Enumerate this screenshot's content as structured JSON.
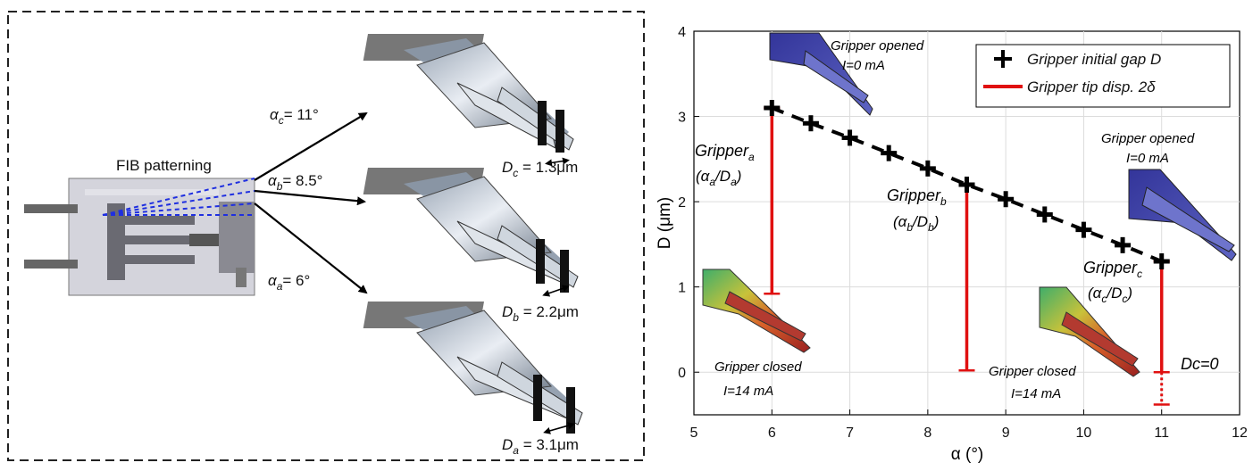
{
  "left_panel": {
    "fib_label": "FIB patterning",
    "angles": [
      {
        "symbol": "α",
        "sub": "c",
        "value": "= 11°"
      },
      {
        "symbol": "α",
        "sub": "b",
        "value": "= 8.5°"
      },
      {
        "symbol": "α",
        "sub": "a",
        "value": "= 6°"
      }
    ],
    "gaps": [
      {
        "symbol": "D",
        "sub": "c",
        "value": " = 1.3μm"
      },
      {
        "symbol": "D",
        "sub": "b",
        "value": " = 2.2μm"
      },
      {
        "symbol": "D",
        "sub": "a",
        "value": " = 3.1μm"
      }
    ]
  },
  "chart_data": {
    "type": "scatter",
    "xlabel": "α (°)",
    "ylabel": "D (μm)",
    "xlim": [
      5,
      12
    ],
    "ylim": [
      -0.5,
      4
    ],
    "xticks": [
      5,
      6,
      7,
      8,
      9,
      10,
      11,
      12
    ],
    "yticks": [
      0,
      1,
      2,
      3,
      4
    ],
    "grid": true,
    "legend_position": "top-right",
    "series": [
      {
        "name": "Gripper initial gap D",
        "color": "#000000",
        "x": [
          6,
          6.5,
          7,
          7.5,
          8,
          8.5,
          9,
          9.5,
          10,
          10.5,
          11
        ],
        "y": [
          3.1,
          2.92,
          2.75,
          2.57,
          2.39,
          2.2,
          2.03,
          1.85,
          1.67,
          1.49,
          1.3
        ]
      },
      {
        "name": "Gripper tip disp. 2δ",
        "color": "#e01010",
        "bars": [
          {
            "x": 6,
            "low": 0.92,
            "high": 3.1
          },
          {
            "x": 8.5,
            "low": 0.02,
            "high": 2.2
          },
          {
            "x": 11,
            "low": -0.38,
            "high": 1.3,
            "dotted_below": 0.0
          }
        ]
      }
    ],
    "annotations": {
      "gripper_a": {
        "main": "Gripper",
        "sub": "a",
        "ratio_num": "α",
        "ratio_num_sub": "a",
        "ratio_den": "D",
        "ratio_den_sub": "a"
      },
      "gripper_b": {
        "main": "Gripper",
        "sub": "b",
        "ratio_num": "α",
        "ratio_num_sub": "b",
        "ratio_den": "D",
        "ratio_den_sub": "b"
      },
      "gripper_c": {
        "main": "Gripper",
        "sub": "c",
        "ratio_num": "α",
        "ratio_num_sub": "c",
        "ratio_den": "D",
        "ratio_den_sub": "c"
      },
      "opened_top": {
        "line1": "Gripper opened",
        "line2": "I=0 mA"
      },
      "opened_right": {
        "line1": "Gripper opened",
        "line2": "I=0 mA"
      },
      "closed_left": {
        "line1": "Gripper closed",
        "line2": "I=14 mA"
      },
      "closed_mid": {
        "line1": "Gripper closed",
        "line2": "I=14 mA"
      },
      "dc_zero": "Dc=0"
    }
  }
}
